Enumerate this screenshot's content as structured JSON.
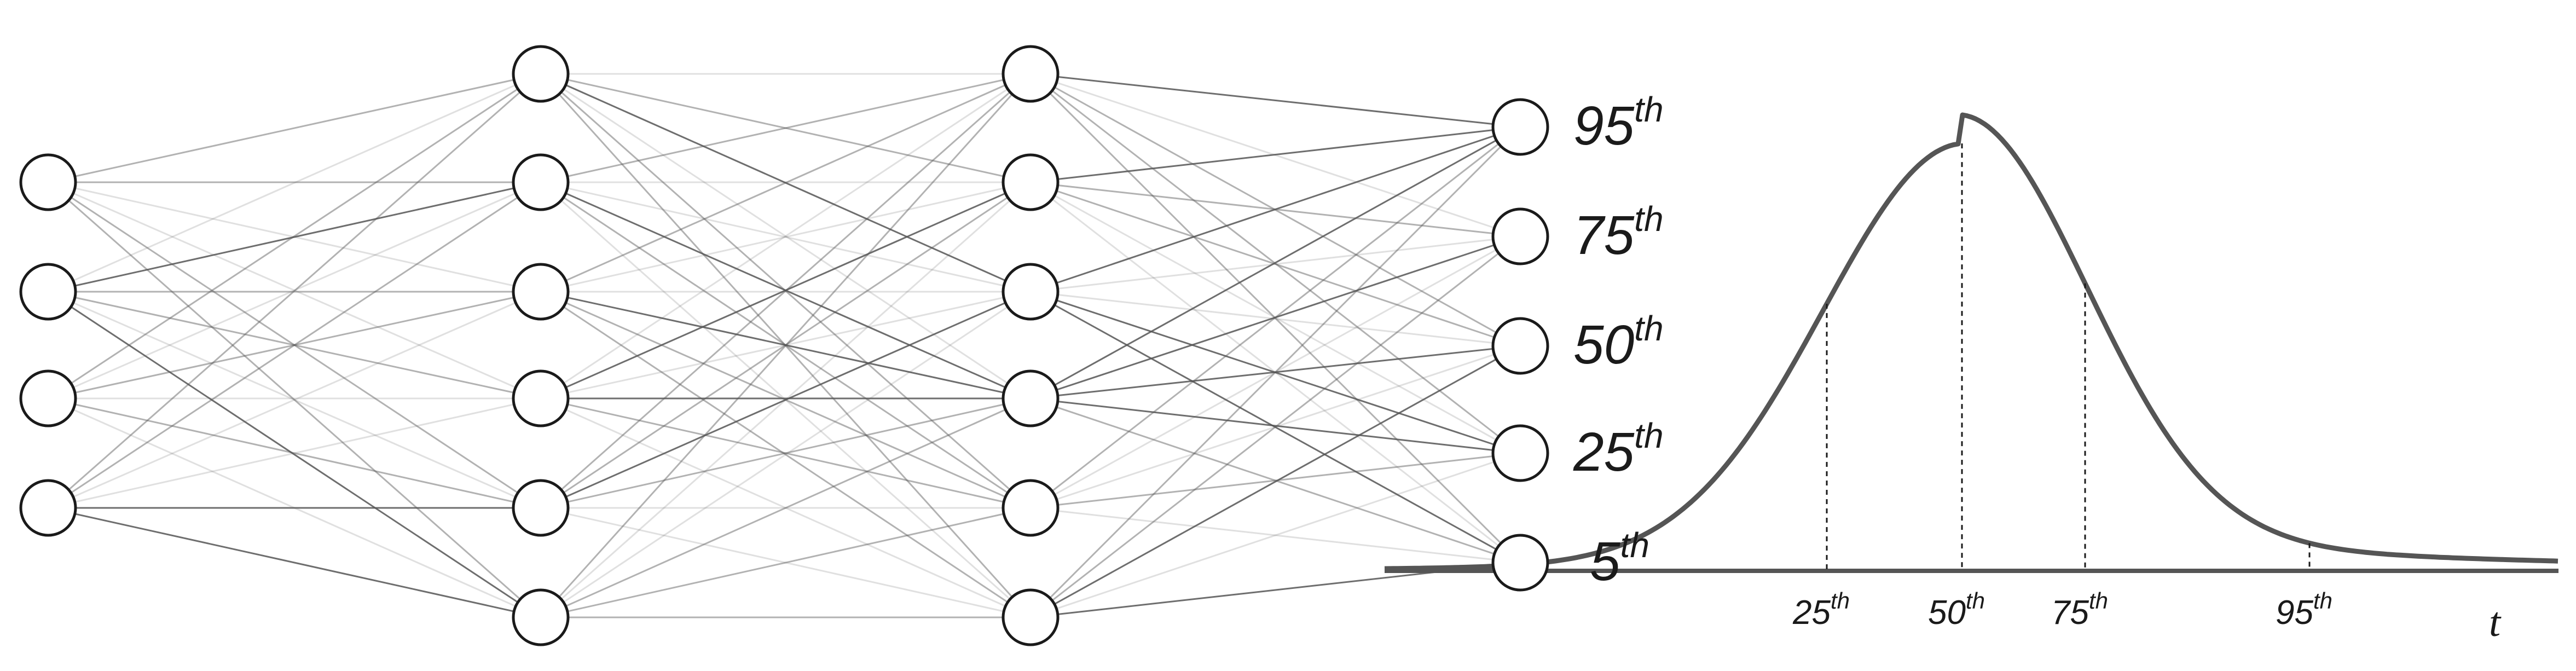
{
  "network": {
    "layers": [
      4,
      6,
      6,
      5
    ]
  },
  "output_labels": [
    {
      "num": "95",
      "sup": "th"
    },
    {
      "num": "75",
      "sup": "th"
    },
    {
      "num": "50",
      "sup": "th"
    },
    {
      "num": "25",
      "sup": "th"
    },
    {
      "num": "5",
      "sup": "th"
    }
  ],
  "distribution": {
    "marker_labels": [
      {
        "num": "25",
        "sup": "th"
      },
      {
        "num": "50",
        "sup": "th"
      },
      {
        "num": "75",
        "sup": "th"
      },
      {
        "num": "95",
        "sup": "th"
      }
    ],
    "axis_label": "t"
  },
  "colors": {
    "node_stroke": "#1a1a1a",
    "edge": "#555555",
    "curve": "#555555",
    "axis": "#555555"
  }
}
